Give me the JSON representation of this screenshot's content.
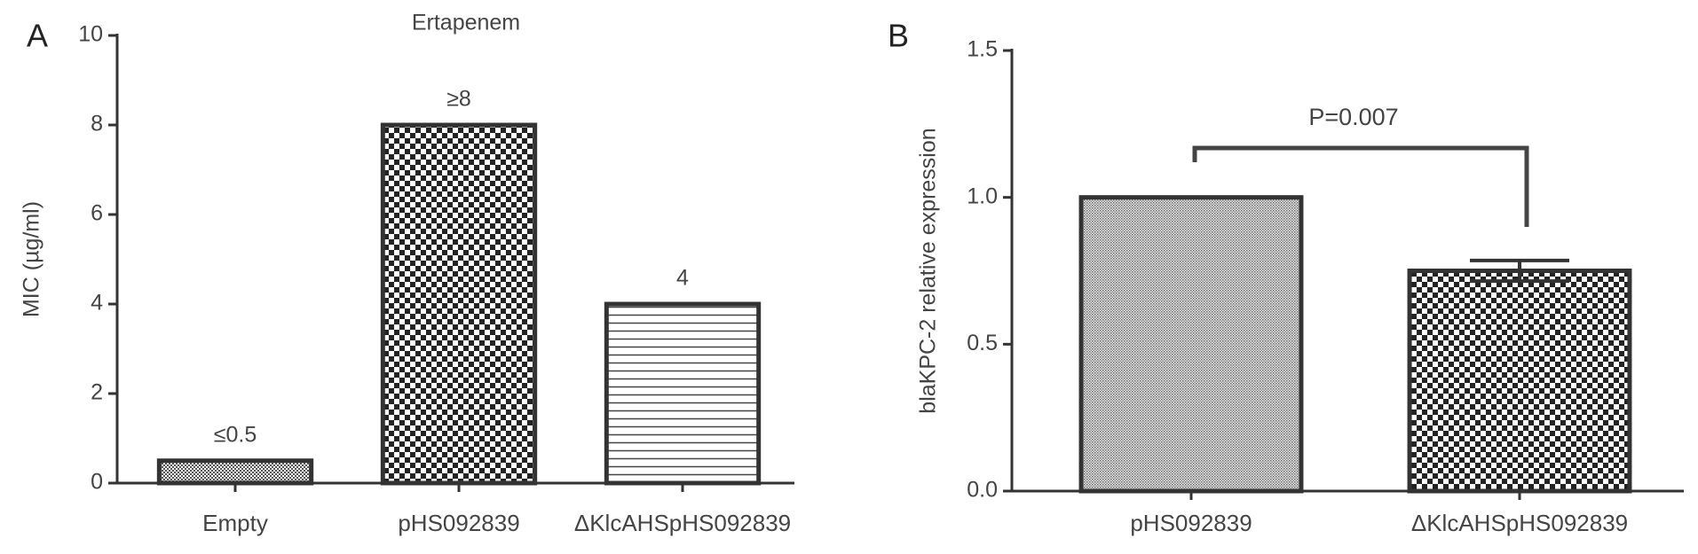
{
  "chart_data": [
    {
      "type": "bar",
      "panel": "A",
      "title": "Ertapenem",
      "y_label": "MIC (µg/ml)",
      "categories": [
        "Empty",
        "pHS092839",
        "ΔKlcAHSpHS092839"
      ],
      "values": [
        0.5,
        8,
        4
      ],
      "value_labels": [
        "≤0.5",
        "≥8",
        "4"
      ],
      "color": "#333333",
      "ylim": [
        0,
        10
      ],
      "yticks": [
        0,
        2,
        4,
        6,
        8,
        10
      ],
      "grid": false
    },
    {
      "type": "bar",
      "panel": "B",
      "y_label": "blaKPC-2 relative expression",
      "categories": [
        "pHS092839",
        "ΔKlcAHSpHS092839"
      ],
      "values": [
        1.0,
        0.75
      ],
      "errors": [
        null,
        0.035
      ],
      "color": "#333333",
      "annotation": "P=0.007",
      "ylim": [
        0,
        1.5
      ],
      "yticks": [
        {
          "value": 0,
          "label": "0.0"
        },
        0.5,
        {
          "value": 1,
          "label": "1.0"
        },
        1.5
      ],
      "grid": false
    }
  ]
}
